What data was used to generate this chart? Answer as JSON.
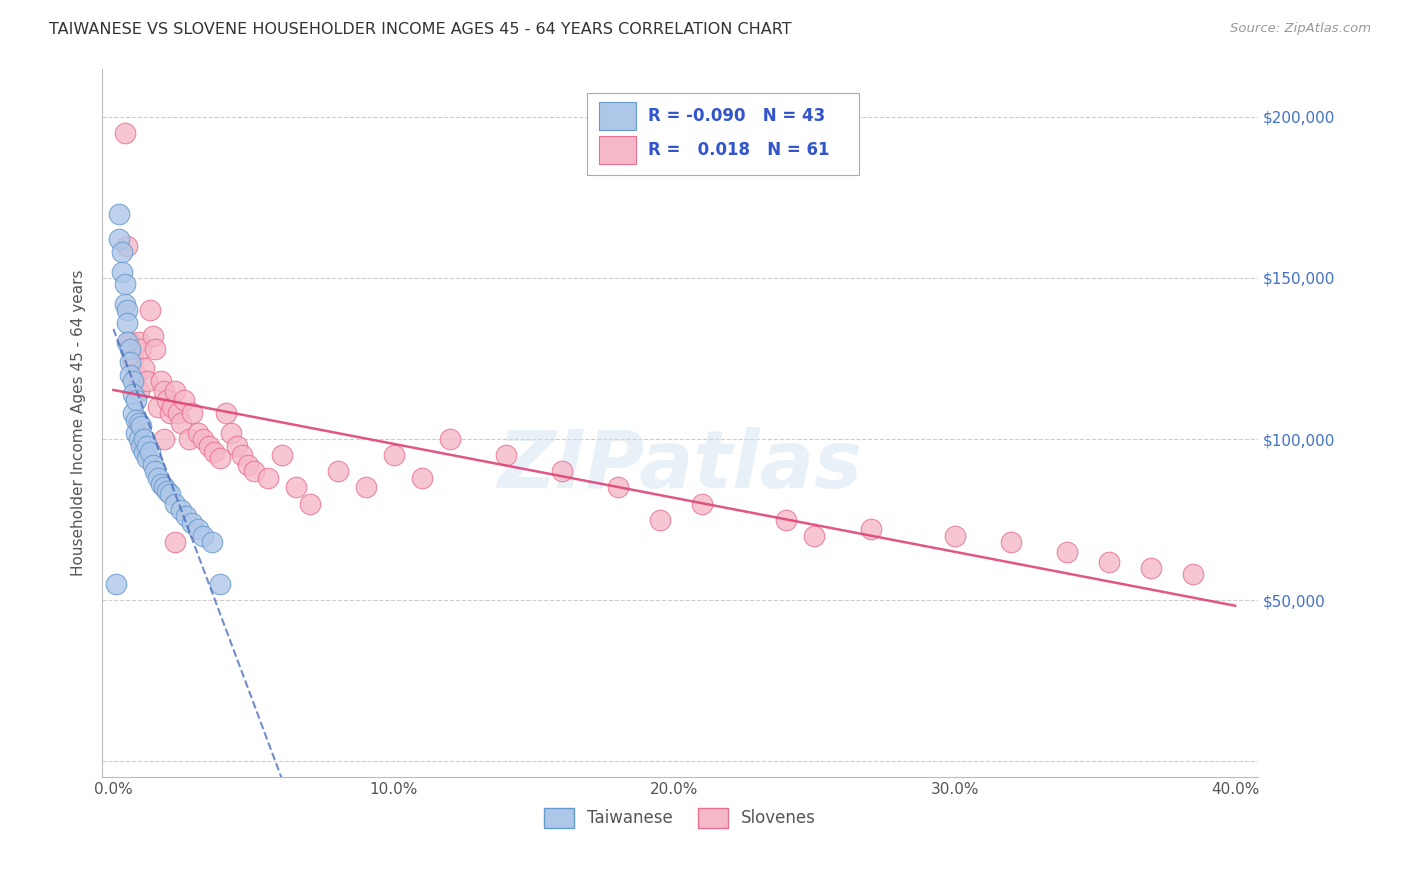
{
  "title": "TAIWANESE VS SLOVENE HOUSEHOLDER INCOME AGES 45 - 64 YEARS CORRELATION CHART",
  "source": "Source: ZipAtlas.com",
  "ylabel": "Householder Income Ages 45 - 64 years",
  "xlim": [
    -0.004,
    0.408
  ],
  "ylim": [
    -5000,
    215000
  ],
  "yticks": [
    0,
    50000,
    100000,
    150000,
    200000
  ],
  "ytick_labels": [
    "",
    "$50,000",
    "$100,000",
    "$150,000",
    "$200,000"
  ],
  "xtick_labels": [
    "0.0%",
    "10.0%",
    "20.0%",
    "30.0%",
    "40.0%"
  ],
  "xticks": [
    0.0,
    0.1,
    0.2,
    0.3,
    0.4
  ],
  "taiwanese_color": "#aec6e8",
  "slovene_color": "#f5b8c8",
  "taiwanese_edge": "#6699cc",
  "slovene_edge": "#e87090",
  "trend_taiwanese_color": "#4466bb",
  "trend_slovene_color": "#dd4477",
  "watermark": "ZIPatlas",
  "taiwanese_x": [
    0.001,
    0.002,
    0.002,
    0.003,
    0.003,
    0.004,
    0.004,
    0.005,
    0.005,
    0.005,
    0.006,
    0.006,
    0.006,
    0.007,
    0.007,
    0.007,
    0.008,
    0.008,
    0.008,
    0.009,
    0.009,
    0.01,
    0.01,
    0.011,
    0.011,
    0.012,
    0.012,
    0.013,
    0.014,
    0.015,
    0.016,
    0.017,
    0.018,
    0.019,
    0.02,
    0.022,
    0.024,
    0.026,
    0.028,
    0.03,
    0.032,
    0.035,
    0.038
  ],
  "taiwanese_y": [
    55000,
    170000,
    162000,
    158000,
    152000,
    148000,
    142000,
    140000,
    136000,
    130000,
    128000,
    124000,
    120000,
    118000,
    114000,
    108000,
    112000,
    106000,
    102000,
    105000,
    100000,
    104000,
    98000,
    100000,
    96000,
    98000,
    94000,
    96000,
    92000,
    90000,
    88000,
    86000,
    85000,
    84000,
    83000,
    80000,
    78000,
    76000,
    74000,
    72000,
    70000,
    68000,
    55000
  ],
  "slovene_x": [
    0.004,
    0.005,
    0.006,
    0.007,
    0.008,
    0.009,
    0.009,
    0.01,
    0.011,
    0.012,
    0.013,
    0.014,
    0.015,
    0.016,
    0.017,
    0.018,
    0.019,
    0.02,
    0.021,
    0.022,
    0.023,
    0.024,
    0.025,
    0.027,
    0.028,
    0.03,
    0.032,
    0.034,
    0.036,
    0.038,
    0.04,
    0.042,
    0.044,
    0.046,
    0.048,
    0.05,
    0.055,
    0.06,
    0.065,
    0.07,
    0.08,
    0.09,
    0.1,
    0.11,
    0.12,
    0.14,
    0.16,
    0.18,
    0.21,
    0.24,
    0.27,
    0.3,
    0.32,
    0.34,
    0.355,
    0.37,
    0.385,
    0.195,
    0.25,
    0.018,
    0.022
  ],
  "slovene_y": [
    195000,
    160000,
    130000,
    125000,
    120000,
    130000,
    115000,
    128000,
    122000,
    118000,
    140000,
    132000,
    128000,
    110000,
    118000,
    115000,
    112000,
    108000,
    110000,
    115000,
    108000,
    105000,
    112000,
    100000,
    108000,
    102000,
    100000,
    98000,
    96000,
    94000,
    108000,
    102000,
    98000,
    95000,
    92000,
    90000,
    88000,
    95000,
    85000,
    80000,
    90000,
    85000,
    95000,
    88000,
    100000,
    95000,
    90000,
    85000,
    80000,
    75000,
    72000,
    70000,
    68000,
    65000,
    62000,
    60000,
    58000,
    75000,
    70000,
    100000,
    68000
  ]
}
